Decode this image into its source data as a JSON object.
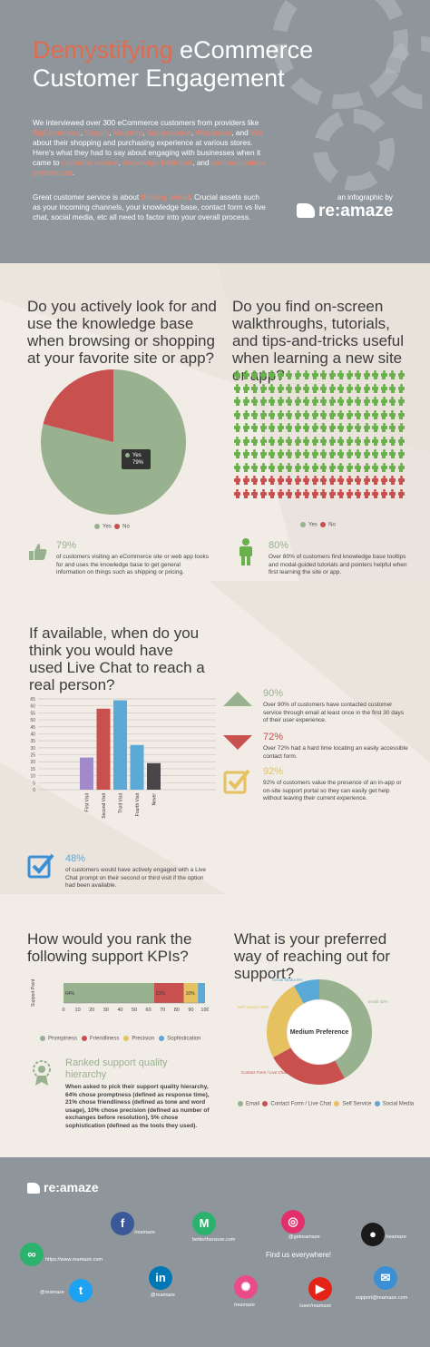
{
  "header": {
    "title_line1_accent": "Demystifying",
    "title_line1_rest": " eCommerce",
    "title_line2": "Customer Engagement",
    "intro_1a": "We interviewed over 300 eCommerce customers from providers like ",
    "providers": [
      "BigCommerce",
      "Shopify",
      "Magento",
      "Squarespace",
      "Wordpress"
    ],
    "intro_1b": ", and ",
    "provider_wix": "Wix",
    "intro_1c": " about their shopping and purchasing experience at various stores. Here's what they had to say about engaging with businesses when it came to ",
    "topics": [
      "customer service",
      "knowledge fulfillment"
    ],
    "intro_1d": ", and ",
    "topic_last": "communications preferences",
    "intro_1e": ".",
    "intro_2a": "Great customer service is about ",
    "intro_2_accent": "thinking ahead",
    "intro_2b": ". Crucial assets such as your incoming channels, your knowledge base, contact form vs live chat, social media, etc all need to factor into your overall process.",
    "byline": "an infographic by",
    "brand": "re:amaze"
  },
  "section1": {
    "q_left": "Do you actively look for and use the knowledge base when browsing or shopping at your favorite site or app?",
    "q_right": "Do you find on-screen walkthroughs, tutorials, and tips-and-tricks useful when learning a new site or app?",
    "legend_yes": "Yes",
    "legend_no": "No",
    "tooltip_label": "Yes",
    "tooltip_value": "79%",
    "stat_left_pct": "79%",
    "stat_left_text": "of customers visiting an eCommerce site or web app looks for and uses the knowledge base to get general information on things such as shipping or pricing.",
    "stat_right_pct": "80%",
    "stat_right_text": "Over 80% of customers find knowledge base tooltips and modal-guided tutorials and pointers helpful when first learning the site or app.",
    "pictogram": {
      "total": 100,
      "yes": 80,
      "no": 20
    }
  },
  "section2": {
    "question": "If available, when do you think you would have used Live Chat to reach a real person?",
    "stat_48_pct": "48%",
    "stat_48_text": "of customers would have actively engaged with a Live Chat prompt on their second or third visit if the option had been available.",
    "stats": [
      {
        "pct": "90%",
        "text": "Over 90% of customers have contacted customer service through email at least once in the first 30 days of their user experience."
      },
      {
        "pct": "72%",
        "text": "Over 72% had a hard time locating an easily accessible contact form."
      },
      {
        "pct": "92%",
        "text": "92% of customers value the presence of an in-app or on-site support portal so they can easily get help without leaving their current experience."
      }
    ]
  },
  "section3": {
    "q_left": "How would you rank the following support KPIs?",
    "q_right": "What is your preferred way of reaching out for support?",
    "ranked_title": "Ranked support quality hierarchy",
    "ranked_text": "When asked to pick their support quality hierarchy, 64% chose promptness (defined as response time), 21% chose friendliness (defined as tone and word usage), 10% chose precision (defined as number of exchanges before resolution), 5% chose sophistication (defined as the tools they used).",
    "donut_center": "Medium Preference"
  },
  "footer": {
    "brand": "re:amaze",
    "find_us": "Find us everywhere!",
    "socials": [
      {
        "name": "facebook",
        "glyph": "f",
        "label": "/reamaze",
        "color": "#3b5998"
      },
      {
        "name": "medium",
        "glyph": "M",
        "label": "betterthansure.com",
        "color": "#2bb36e"
      },
      {
        "name": "instagram",
        "glyph": "◎",
        "label": "@getreamaze",
        "color": "#e1306c"
      },
      {
        "name": "github",
        "glyph": "●",
        "label": "/reamaze",
        "color": "#1b1b1b"
      },
      {
        "name": "website",
        "glyph": "∞",
        "label": "https://www.reamaze.com",
        "color": "#2bb36e"
      },
      {
        "name": "twitter",
        "glyph": "t",
        "label": "@reamaze",
        "color": "#1da1f2"
      },
      {
        "name": "linkedin",
        "glyph": "in",
        "label": "@reamaze",
        "color": "#0077b5"
      },
      {
        "name": "dribbble",
        "glyph": "✺",
        "label": "/reamaze",
        "color": "#ea4c89"
      },
      {
        "name": "youtube",
        "glyph": "▶",
        "label": "/user/reamaze",
        "color": "#e62117"
      },
      {
        "name": "email",
        "glyph": "✉",
        "label": "support@reamaze.com",
        "color": "#3b8fd4"
      }
    ]
  },
  "colors": {
    "green": "#98b18f",
    "red": "#c8514f",
    "gold": "#e5c15f",
    "blue": "#5aa9d6",
    "purple": "#a08ac9",
    "dark": "#4a4548"
  },
  "chart_data": [
    {
      "type": "pie",
      "title": "Do you actively look for and use the knowledge base when browsing or shopping at your favorite site or app?",
      "labels": [
        "Yes",
        "No"
      ],
      "values": [
        79,
        21
      ],
      "colors": [
        "#98b18f",
        "#c8514f"
      ],
      "legend": "bottom"
    },
    {
      "type": "bar",
      "title": "If available, when do you think you would have used Live Chat to reach a real person?",
      "categories": [
        "First Visit",
        "Second Visit",
        "Third Visit",
        "Fourth Visit",
        "Never"
      ],
      "values": [
        23,
        58,
        64,
        32,
        19
      ],
      "colors": [
        "#a08ac9",
        "#c8514f",
        "#5aa9d6",
        "#5aa9d6",
        "#4a4548"
      ],
      "ylim": [
        0,
        65
      ],
      "yticks": [
        0,
        5,
        10,
        15,
        20,
        25,
        30,
        35,
        40,
        45,
        50,
        55,
        60,
        65
      ],
      "grid": true
    },
    {
      "type": "bar",
      "orientation": "horizontal-stacked",
      "title": "How would you rank the following support KPIs?",
      "ylabel": "Support Point",
      "series": [
        {
          "name": "Promptness",
          "values": [
            64
          ],
          "label": "64%",
          "color": "#98b18f"
        },
        {
          "name": "Friendliness",
          "values": [
            21
          ],
          "label": "21%",
          "color": "#c8514f"
        },
        {
          "name": "Precision",
          "values": [
            10
          ],
          "label": "10%",
          "color": "#e5c15f"
        },
        {
          "name": "Sophistication",
          "values": [
            5
          ],
          "label": "",
          "color": "#5aa9d6"
        }
      ],
      "xlim": [
        0,
        100
      ],
      "xticks": [
        0,
        10,
        20,
        30,
        40,
        50,
        60,
        70,
        80,
        90,
        100
      ],
      "legend": "bottom"
    },
    {
      "type": "pie",
      "variant": "donut",
      "title": "What is your preferred way of reaching out for support?",
      "labels": [
        "Email",
        "Contact Form / Live Chat",
        "Self Service",
        "Social Media"
      ],
      "values": [
        42,
        25,
        25,
        8
      ],
      "slice_labels": [
        "Email 42%",
        "Contact Form / Live Chat 25%",
        "Self Service 25%",
        "Social Media 8%"
      ],
      "colors": [
        "#98b18f",
        "#c8514f",
        "#e5c15f",
        "#5aa9d6"
      ],
      "legend": "bottom"
    }
  ]
}
